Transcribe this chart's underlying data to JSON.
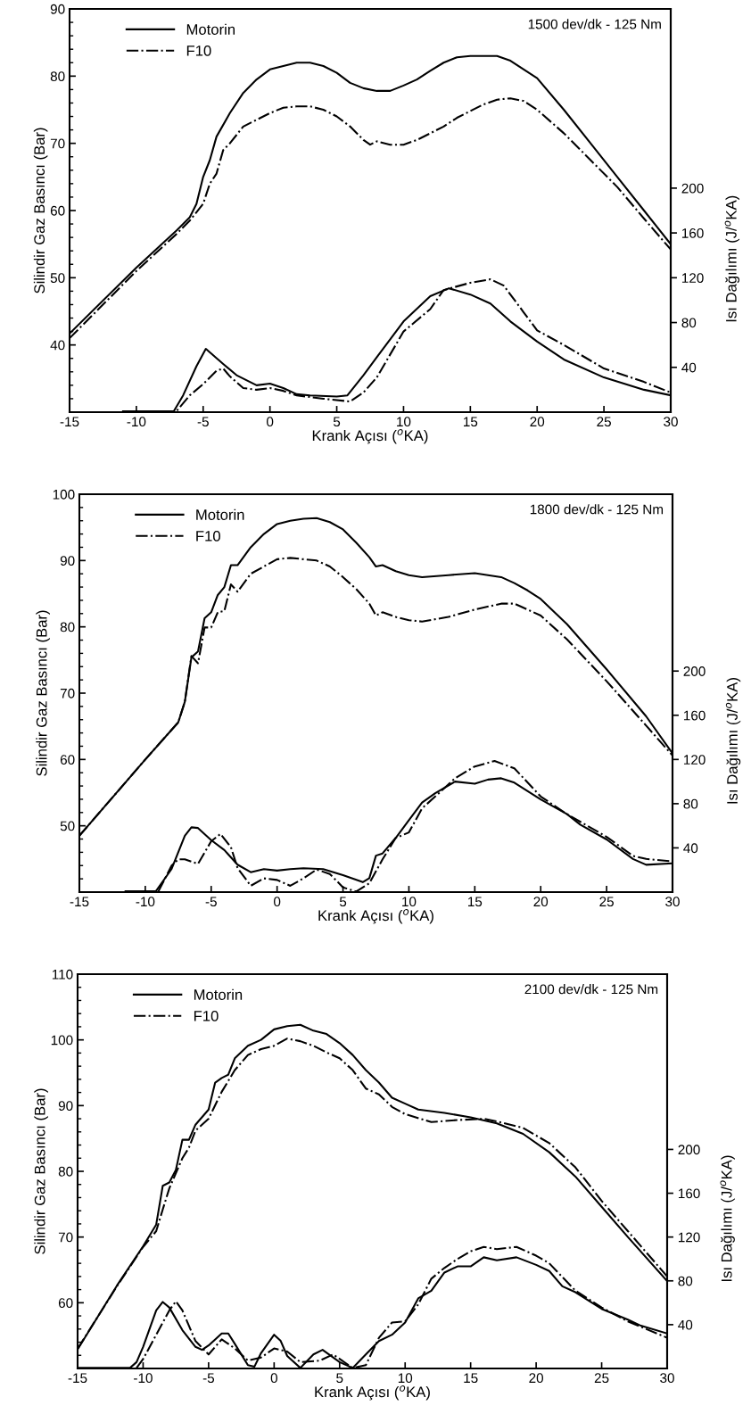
{
  "chart_data": [
    {
      "type": "line",
      "xlabel": "Krank Açısı ($^{o}$KA)",
      "ylabel": "Silindir Gaz Basıncı (Bar)",
      "y2label": "Isı Dağılımı (J/$^{o}$KA)",
      "annotations": [
        "1500 dev/dk - 125 Nm"
      ],
      "legend": "top left",
      "grid": false,
      "marker": "none",
      "xlim": [
        -15,
        30
      ],
      "xticks": [
        -15,
        -10,
        -5,
        0,
        5,
        10,
        15,
        20,
        25,
        30
      ],
      "ylim": [
        30,
        90
      ],
      "yticks": [
        40,
        50,
        60,
        70,
        80,
        90
      ],
      "y2lim": [
        0,
        360
      ],
      "y2ticks": [
        40,
        80,
        120,
        160,
        200
      ],
      "series": [
        {
          "name": "Motorin",
          "color": "#000000",
          "line_style": "solid",
          "x": [
            -15,
            -10,
            -7,
            -6,
            -5.5,
            -5,
            -4.5,
            -4,
            -3,
            -2,
            -1,
            0,
            1,
            2,
            3,
            4,
            5,
            6,
            7,
            8,
            9,
            10,
            11,
            12,
            13,
            14,
            15,
            16,
            17,
            18,
            19,
            20,
            22,
            24,
            26,
            28,
            30
          ],
          "values": [
            41.7,
            51.5,
            57,
            59,
            61,
            65,
            67.5,
            71,
            74.5,
            77.5,
            79.5,
            81,
            81.5,
            82,
            82,
            81.5,
            80.5,
            79,
            78.2,
            77.8,
            77.8,
            78.6,
            79.5,
            80.8,
            82,
            82.8,
            83,
            83,
            83,
            82.3,
            81,
            79.7,
            75,
            70,
            65,
            60,
            55
          ]
        },
        {
          "name": "F10",
          "color": "#000000",
          "line_style": "dashdot",
          "x": [
            -15,
            -10,
            -7,
            -6,
            -5,
            -4.5,
            -4,
            -3.5,
            -3,
            -2,
            -1,
            0,
            1,
            2,
            3,
            4,
            5,
            6,
            7,
            7.5,
            8,
            9,
            10,
            11,
            12,
            13,
            14,
            15,
            16,
            17,
            18,
            19,
            20,
            22,
            24,
            26,
            28,
            30
          ],
          "values": [
            41,
            51,
            56.5,
            58.5,
            61,
            64,
            65.5,
            69,
            70,
            72.5,
            73.5,
            74.5,
            75.3,
            75.5,
            75.5,
            75,
            74,
            72.5,
            70.5,
            69.8,
            70.3,
            69.8,
            69.8,
            70.5,
            71.5,
            72.5,
            73.8,
            74.8,
            75.8,
            76.5,
            76.7,
            76.3,
            75,
            71.5,
            67.5,
            63.5,
            58.8,
            54.2
          ]
        },
        {
          "color": "#000000",
          "line_style": "solid",
          "axis": "y2",
          "x": [
            -11,
            -7.2,
            -6.5,
            -5.5,
            -4.8,
            -3.5,
            -2.5,
            -1,
            0,
            1,
            2,
            3,
            5,
            5.8,
            7,
            8,
            10,
            12,
            13.4,
            15,
            16.5,
            18,
            20,
            22,
            25,
            28,
            30
          ],
          "values": [
            0.8,
            0.8,
            15,
            41,
            56.5,
            43,
            33,
            24,
            25.5,
            21.5,
            16,
            15,
            14,
            15,
            33,
            49,
            81,
            103.5,
            110.6,
            105,
            97,
            81,
            63,
            47,
            31,
            20,
            15
          ]
        },
        {
          "color": "#000000",
          "line_style": "dashdot",
          "axis": "y2",
          "x": [
            -11,
            -7,
            -6,
            -5,
            -4,
            -3.5,
            -3,
            -2,
            -1,
            0,
            1,
            2,
            4,
            6,
            7,
            8,
            10,
            12,
            13,
            15,
            16.5,
            17.5,
            19,
            20,
            22,
            25,
            28,
            30
          ],
          "values": [
            0.8,
            0.8,
            15,
            25,
            37,
            39,
            32,
            21.5,
            20,
            21.5,
            19,
            15,
            12,
            9.5,
            17.5,
            31,
            72,
            92,
            109,
            115.5,
            118.6,
            113,
            89,
            73,
            60,
            39,
            27,
            17.5
          ]
        }
      ]
    },
    {
      "type": "line",
      "xlabel": "Krank Açısı ($^{o}$KA)",
      "ylabel": "Silindir Gaz Basıncı (Bar)",
      "y2label": "Isı Dağılımı (J/$^{o}$KA)",
      "annotations": [
        "1800 dev/dk - 125 Nm"
      ],
      "legend": "top left",
      "grid": false,
      "marker": "none",
      "xlim": [
        -15,
        30
      ],
      "xticks": [
        -15,
        -10,
        -5,
        0,
        5,
        10,
        15,
        20,
        25,
        30
      ],
      "ylim": [
        40,
        100
      ],
      "yticks": [
        50,
        60,
        70,
        80,
        90,
        100
      ],
      "y2lim": [
        0,
        360
      ],
      "y2ticks": [
        40,
        80,
        120,
        160,
        200
      ],
      "series": [
        {
          "name": "Motorin",
          "color": "#000000",
          "line_style": "solid",
          "x": [
            -15,
            -10,
            -7.5,
            -7,
            -6.5,
            -6,
            -5.5,
            -5,
            -4.5,
            -4,
            -3.5,
            -3,
            -2,
            -1,
            0,
            1,
            2,
            3,
            4,
            5,
            6,
            7,
            7.5,
            8,
            9,
            10,
            11,
            13,
            15,
            17,
            18,
            19,
            20,
            22,
            25,
            28,
            30
          ],
          "values": [
            48.5,
            60,
            65.6,
            68.7,
            75.4,
            76.3,
            81.3,
            82.2,
            84.8,
            86,
            89.3,
            89.3,
            92,
            94,
            95.5,
            96,
            96.3,
            96.4,
            95.8,
            94.7,
            92.7,
            90.5,
            89.1,
            89.3,
            88.4,
            87.8,
            87.5,
            87.8,
            88.1,
            87.5,
            86.6,
            85.5,
            84.2,
            80.4,
            73.6,
            66.5,
            60.9
          ]
        },
        {
          "name": "F10",
          "color": "#000000",
          "line_style": "dashdot",
          "x": [
            -15,
            -10,
            -7.5,
            -7,
            -6.5,
            -6,
            -5.5,
            -5,
            -4.5,
            -4,
            -3.5,
            -3,
            -2,
            -1,
            0,
            1,
            2,
            3,
            4,
            5,
            6,
            7,
            7.5,
            8,
            9,
            10,
            11,
            13,
            15,
            17,
            18,
            20,
            22,
            25,
            28,
            30
          ],
          "values": [
            48.5,
            60,
            65.6,
            68.7,
            75.6,
            74.5,
            79.9,
            79.9,
            82.2,
            82.4,
            86.4,
            85.3,
            88,
            89.1,
            90.2,
            90.4,
            90.2,
            90,
            89.1,
            87.5,
            85.7,
            83.5,
            81.7,
            82.2,
            81.5,
            81,
            80.8,
            81.5,
            82.6,
            83.5,
            83.5,
            81.7,
            78.1,
            71.8,
            65.1,
            60.6
          ]
        },
        {
          "color": "#000000",
          "line_style": "solid",
          "axis": "y2",
          "x": [
            -11.5,
            -9.2,
            -8,
            -7,
            -6.5,
            -6,
            -5,
            -4,
            -3,
            -2,
            -1,
            0,
            1,
            2,
            3.5,
            5,
            6.5,
            7,
            7.5,
            8,
            9,
            10,
            11,
            12,
            13.5,
            15,
            16,
            17,
            18,
            20,
            22,
            23,
            25,
            27,
            28,
            30
          ],
          "values": [
            0.7,
            0.7,
            21,
            51,
            58.6,
            58,
            47,
            38,
            24.8,
            18,
            20.8,
            19.5,
            20.8,
            21.6,
            20.8,
            15.3,
            9,
            12.6,
            33,
            35,
            49,
            65,
            81,
            89.5,
            100,
            98,
            101.8,
            103,
            99,
            83.9,
            70.5,
            61,
            47.6,
            30,
            24.7,
            26
          ]
        },
        {
          "color": "#000000",
          "line_style": "dashdot",
          "axis": "y2",
          "x": [
            -9,
            -8,
            -7.5,
            -7,
            -6,
            -5,
            -4.3,
            -3.5,
            -3,
            -2,
            -1,
            0,
            1,
            2,
            3,
            4,
            5,
            6,
            7,
            8,
            9,
            10,
            11,
            12,
            13.5,
            15,
            16.5,
            18,
            20,
            22,
            25,
            27,
            28,
            30
          ],
          "values": [
            0.7,
            24,
            29.6,
            29.6,
            25.6,
            46,
            52.6,
            40.6,
            21.8,
            5.7,
            12.4,
            11,
            5.7,
            12.4,
            20.4,
            16.4,
            4.3,
            0.5,
            8,
            29.6,
            49,
            54,
            75.8,
            86.5,
            103,
            113.7,
            118.6,
            112,
            86.5,
            70.5,
            50,
            32.8,
            30,
            27.8
          ]
        }
      ]
    },
    {
      "type": "line",
      "xlabel": "Krank Açısı ($^{o}$KA)",
      "ylabel": "Silindir Gaz Basıncı (Bar)",
      "y2label": "Isı Dağılımı (J/$^{o}$KA)",
      "annotations": [
        "2100 dev/dk - 125 Nm"
      ],
      "legend": "top left",
      "grid": false,
      "marker": "none",
      "xlim": [
        -15,
        30
      ],
      "xticks": [
        -15,
        -10,
        -5,
        0,
        5,
        10,
        15,
        20,
        25,
        30
      ],
      "ylim": [
        50,
        110
      ],
      "yticks": [
        60,
        70,
        80,
        90,
        100,
        110
      ],
      "y2lim": [
        0,
        360
      ],
      "y2ticks": [
        40,
        80,
        120,
        160,
        200
      ],
      "series": [
        {
          "name": "Motorin",
          "color": "#000000",
          "line_style": "solid",
          "x": [
            -15,
            -12,
            -10,
            -9,
            -8.5,
            -8,
            -7.5,
            -7,
            -6.5,
            -6,
            -5,
            -4.5,
            -4,
            -3.5,
            -3,
            -2,
            -1,
            0,
            1,
            2,
            3,
            4,
            5,
            6,
            7,
            8,
            9,
            10,
            11,
            13,
            15,
            17,
            19,
            21,
            23,
            25,
            27,
            30
          ],
          "values": [
            52.9,
            62.6,
            68.6,
            71.9,
            77.8,
            78.3,
            80.2,
            84.8,
            84.8,
            87.1,
            89.4,
            93.5,
            94.2,
            94.7,
            97.2,
            99.1,
            100,
            101.6,
            102.1,
            102.3,
            101.4,
            100.9,
            99.5,
            97.7,
            95.4,
            93.5,
            91.2,
            90.3,
            89.4,
            88.9,
            88.2,
            87.3,
            85.7,
            82.9,
            79.2,
            74.6,
            70,
            63.3
          ]
        },
        {
          "name": "F10",
          "color": "#000000",
          "line_style": "dashdot",
          "x": [
            -15,
            -12,
            -10,
            -9,
            -8.5,
            -8,
            -7,
            -6.5,
            -6,
            -5,
            -4,
            -3,
            -2,
            -1,
            0,
            1,
            2,
            3,
            4,
            5,
            6,
            7,
            8,
            9,
            10,
            12,
            14,
            16,
            17,
            19,
            21,
            23,
            25,
            27,
            30
          ],
          "values": [
            53,
            62.5,
            68.5,
            70.9,
            74.2,
            77.4,
            82,
            83.6,
            86.2,
            88,
            92.1,
            95.4,
            97.7,
            98.6,
            99.1,
            100.2,
            99.8,
            99.1,
            98.1,
            97.2,
            95.4,
            92.6,
            91.7,
            89.8,
            88.7,
            87.5,
            87.8,
            88,
            87.6,
            86.6,
            84.3,
            80.6,
            75.5,
            70.9,
            64
          ]
        },
        {
          "color": "#000000",
          "line_style": "solid",
          "axis": "y2",
          "x": [
            -15,
            -11,
            -10.5,
            -10,
            -9,
            -8.5,
            -8,
            -7,
            -6,
            -5.5,
            -5,
            -4,
            -3.5,
            -3,
            -2,
            -1.5,
            -1,
            0,
            0.5,
            1,
            2,
            3,
            3.7,
            5,
            6,
            7,
            8,
            9,
            10,
            11,
            12,
            13,
            14,
            15,
            16,
            17,
            18.5,
            20,
            21,
            22,
            23,
            25,
            27,
            28,
            30
          ],
          "values": [
            0.5,
            0.5,
            5.8,
            19.7,
            53,
            60.7,
            55.7,
            35,
            19.7,
            17,
            21,
            32,
            32,
            22.5,
            3,
            1.7,
            14,
            30.8,
            25.2,
            11.4,
            0.5,
            12.8,
            17,
            5.8,
            0.5,
            12.8,
            25,
            30.8,
            42,
            64,
            71,
            87.6,
            93.2,
            93.2,
            101.5,
            98.7,
            101.5,
            94.6,
            89,
            75,
            69.6,
            54.4,
            44.6,
            39,
            32
          ]
        },
        {
          "color": "#000000",
          "line_style": "dashdot",
          "axis": "y2",
          "x": [
            -10.5,
            -10,
            -9,
            -8,
            -7.5,
            -7,
            -6,
            -5,
            -4,
            -3,
            -2,
            -1,
            0,
            1,
            2,
            3.5,
            4.5,
            6,
            7,
            8,
            9,
            10,
            11,
            12,
            13,
            14,
            15,
            16,
            17,
            18.5,
            20,
            21,
            22,
            23,
            25,
            27,
            30
          ],
          "values": [
            0.5,
            8.6,
            30.8,
            53,
            61.3,
            53,
            25,
            12.8,
            26.6,
            18.3,
            7.2,
            10,
            18.3,
            15.5,
            5.8,
            7.2,
            12.8,
            0.5,
            3,
            28,
            42,
            43,
            58.5,
            82,
            91.8,
            100,
            107,
            111,
            109,
            111,
            103,
            96,
            83.5,
            71,
            55.7,
            43,
            28
          ]
        }
      ]
    }
  ]
}
